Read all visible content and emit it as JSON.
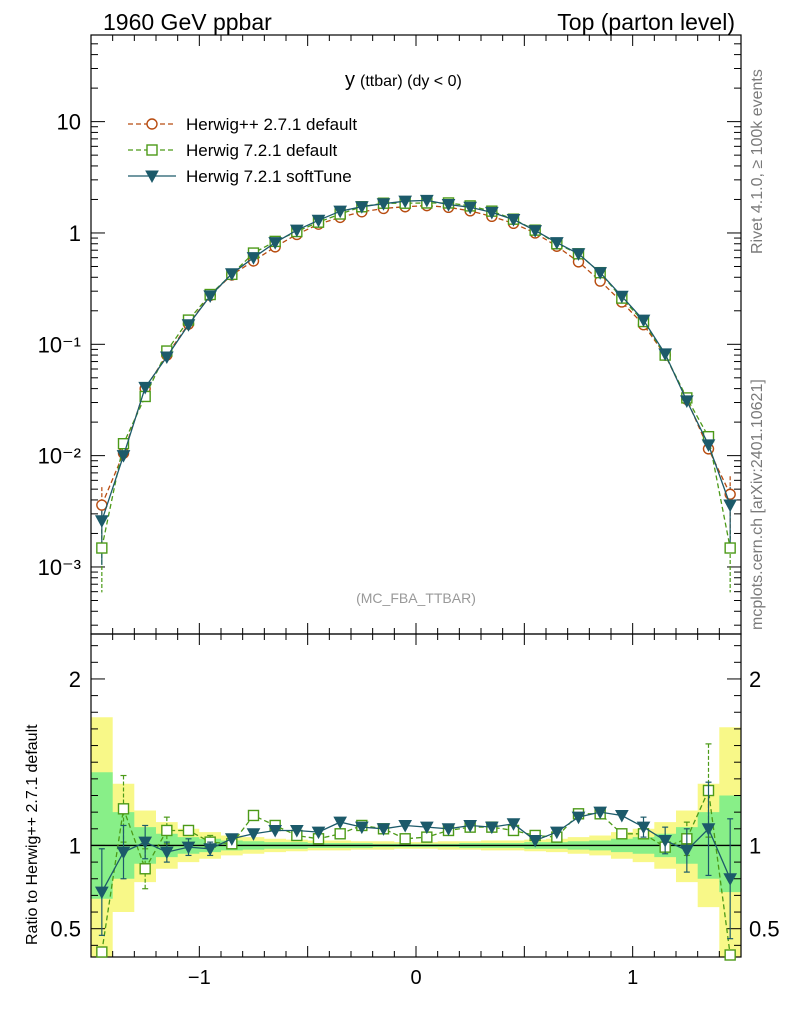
{
  "header": {
    "left_label": "1960 GeV ppbar",
    "right_label": "Top (parton level)"
  },
  "side_labels": {
    "rivet": "Rivet 4.1.0, ≥ 100k events",
    "source": "mcplots.cern.ch [arXiv:2401.10621]"
  },
  "colors": {
    "herwigpp": "#b84c10",
    "herwig721": "#4c9a18",
    "softtune": "#1c5a6a",
    "band_inner": "#88ef88",
    "band_outer": "#f8f888"
  },
  "chart_data": [
    {
      "type": "line",
      "panel": "main",
      "title_main": "y",
      "title_rest": "(ttbar) (dy < 0)",
      "analysis_tag": "(MC_FBA_TTBAR)",
      "yscale": "log",
      "ylim": [
        0.00025,
        60
      ],
      "xlim": [
        -1.5,
        1.5
      ],
      "y_tick_labels": [
        "10",
        "1",
        "10⁻¹",
        "10⁻²",
        "10⁻³"
      ],
      "y_tick_values": [
        10,
        1,
        0.1,
        0.01,
        0.001
      ],
      "legend_position": "top-left",
      "x": [
        -1.45,
        -1.35,
        -1.25,
        -1.15,
        -1.05,
        -0.95,
        -0.85,
        -0.75,
        -0.65,
        -0.55,
        -0.45,
        -0.35,
        -0.25,
        -0.15,
        -0.05,
        0.05,
        0.15,
        0.25,
        0.35,
        0.45,
        0.55,
        0.65,
        0.75,
        0.85,
        0.95,
        1.05,
        1.15,
        1.25,
        1.35,
        1.45
      ],
      "series": [
        {
          "name": "Herwig++ 2.7.1 default",
          "color_key": "herwigpp",
          "marker": "circle",
          "dash": true,
          "values": [
            0.0036,
            0.0105,
            0.04,
            0.08,
            0.152,
            0.275,
            0.42,
            0.56,
            0.75,
            0.97,
            1.2,
            1.38,
            1.55,
            1.66,
            1.72,
            1.76,
            1.7,
            1.58,
            1.41,
            1.22,
            1.0,
            0.76,
            0.55,
            0.37,
            0.24,
            0.15,
            0.08,
            0.032,
            0.0115,
            0.0045
          ]
        },
        {
          "name": "Herwig 7.2.1 default",
          "color_key": "herwig721",
          "marker": "square",
          "dash": true,
          "values": [
            0.00148,
            0.0128,
            0.034,
            0.087,
            0.165,
            0.28,
            0.425,
            0.66,
            0.84,
            1.03,
            1.25,
            1.48,
            1.72,
            1.85,
            1.85,
            1.86,
            1.86,
            1.75,
            1.57,
            1.33,
            1.06,
            0.8,
            0.65,
            0.44,
            0.26,
            0.16,
            0.08,
            0.033,
            0.0148,
            0.00148
          ]
        },
        {
          "name": "Herwig 7.2.1 softTune",
          "color_key": "softtune",
          "marker": "triangle-down",
          "dash": false,
          "values": [
            0.0026,
            0.01,
            0.041,
            0.077,
            0.15,
            0.272,
            0.43,
            0.6,
            0.82,
            1.06,
            1.3,
            1.57,
            1.72,
            1.83,
            1.93,
            1.96,
            1.8,
            1.7,
            1.53,
            1.32,
            1.05,
            0.82,
            0.65,
            0.44,
            0.27,
            0.165,
            0.082,
            0.031,
            0.0125,
            0.0036
          ]
        }
      ]
    },
    {
      "type": "line",
      "panel": "ratio",
      "ylabel": "Ratio to Herwig++ 2.7.1 default",
      "ylim": [
        0.33,
        2.27
      ],
      "xlim": [
        -1.5,
        1.5
      ],
      "x_tick_labels": [
        "−1",
        "0",
        "1"
      ],
      "x_tick_values": [
        -1,
        0,
        1
      ],
      "y_tick_labels": [
        "2",
        "1",
        "0.5"
      ],
      "y_tick_values": [
        2,
        1,
        0.5
      ],
      "x": [
        -1.45,
        -1.35,
        -1.25,
        -1.15,
        -1.05,
        -0.95,
        -0.85,
        -0.75,
        -0.65,
        -0.55,
        -0.45,
        -0.35,
        -0.25,
        -0.15,
        -0.05,
        0.05,
        0.15,
        0.25,
        0.35,
        0.45,
        0.55,
        0.65,
        0.75,
        0.85,
        0.95,
        1.05,
        1.15,
        1.25,
        1.35,
        1.45
      ],
      "band_inner": {
        "lower": [
          0.68,
          0.8,
          0.89,
          0.93,
          0.95,
          0.96,
          0.97,
          0.975,
          0.98,
          0.98,
          0.985,
          0.985,
          0.985,
          0.99,
          0.99,
          0.99,
          0.99,
          0.985,
          0.985,
          0.985,
          0.98,
          0.98,
          0.975,
          0.97,
          0.96,
          0.95,
          0.93,
          0.89,
          0.8,
          0.72
        ],
        "upper": [
          1.44,
          1.2,
          1.11,
          1.07,
          1.05,
          1.04,
          1.03,
          1.025,
          1.02,
          1.02,
          1.015,
          1.015,
          1.015,
          1.01,
          1.01,
          1.01,
          1.01,
          1.015,
          1.015,
          1.015,
          1.02,
          1.02,
          1.025,
          1.03,
          1.04,
          1.05,
          1.07,
          1.11,
          1.2,
          1.3
        ]
      },
      "band_outer": {
        "lower": [
          0.33,
          0.6,
          0.78,
          0.86,
          0.9,
          0.92,
          0.94,
          0.95,
          0.96,
          0.965,
          0.97,
          0.97,
          0.975,
          0.975,
          0.98,
          0.98,
          0.975,
          0.975,
          0.97,
          0.97,
          0.965,
          0.96,
          0.95,
          0.94,
          0.92,
          0.9,
          0.86,
          0.78,
          0.63,
          0.33
        ],
        "upper": [
          1.77,
          1.37,
          1.21,
          1.14,
          1.1,
          1.08,
          1.06,
          1.05,
          1.04,
          1.035,
          1.03,
          1.03,
          1.025,
          1.025,
          1.02,
          1.02,
          1.025,
          1.025,
          1.03,
          1.03,
          1.035,
          1.04,
          1.05,
          1.06,
          1.08,
          1.1,
          1.14,
          1.21,
          1.37,
          1.71
        ]
      },
      "series": [
        {
          "name": "Herwig 7.2.1 default",
          "color_key": "herwig721",
          "marker": "square",
          "dash": true,
          "values": [
            0.36,
            1.22,
            0.86,
            1.09,
            1.09,
            1.02,
            1.01,
            1.18,
            1.12,
            1.06,
            1.04,
            1.07,
            1.12,
            1.1,
            1.04,
            1.05,
            1.09,
            1.11,
            1.11,
            1.09,
            1.06,
            1.05,
            1.19,
            1.19,
            1.07,
            1.07,
            0.99,
            1.04,
            1.33,
            0.33
          ],
          "err": [
            0.0,
            0.2,
            0.12,
            0.08,
            0.0,
            0.04,
            0.0,
            0.0,
            0.0,
            0.0,
            0.0,
            0.0,
            0.0,
            0.0,
            0.0,
            0.0,
            0.0,
            0.0,
            0.0,
            0.0,
            0.0,
            0.0,
            0.0,
            0.0,
            0.0,
            0.0,
            0.0,
            0.1,
            0.28,
            0.0
          ]
        },
        {
          "name": "Herwig 7.2.1 softTune",
          "color_key": "softtune",
          "marker": "triangle-down",
          "dash": false,
          "values": [
            0.72,
            0.96,
            1.02,
            0.96,
            0.99,
            0.98,
            1.04,
            1.07,
            1.09,
            1.09,
            1.08,
            1.14,
            1.11,
            1.1,
            1.12,
            1.11,
            1.1,
            1.12,
            1.11,
            1.13,
            1.03,
            1.08,
            1.17,
            1.2,
            1.18,
            1.11,
            1.03,
            0.97,
            1.1,
            0.8
          ],
          "err": [
            0.26,
            0.16,
            0.1,
            0.06,
            0.05,
            0.04,
            0.0,
            0.0,
            0.0,
            0.0,
            0.0,
            0.0,
            0.0,
            0.0,
            0.0,
            0.0,
            0.0,
            0.0,
            0.0,
            0.0,
            0.0,
            0.0,
            0.0,
            0.0,
            0.0,
            0.06,
            0.08,
            0.13,
            0.28,
            0.36
          ]
        }
      ]
    }
  ]
}
